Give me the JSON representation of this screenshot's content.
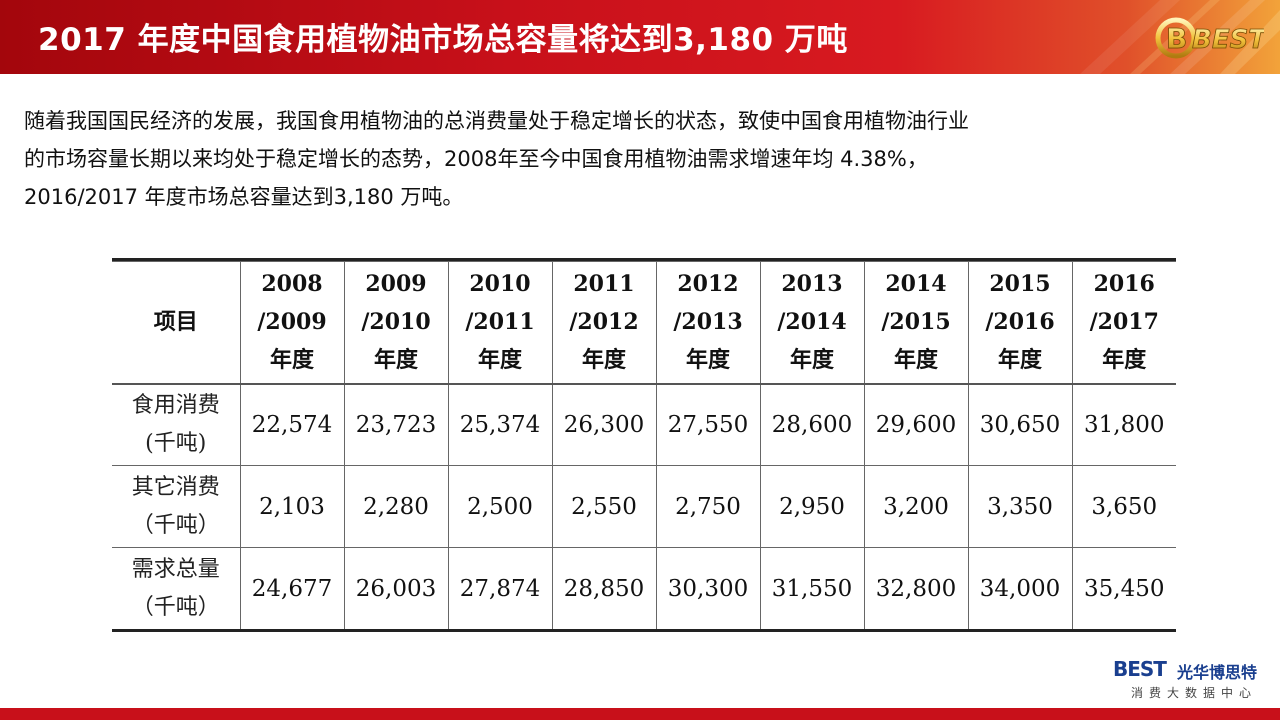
{
  "slide": {
    "title": "2017 年度中国食用植物油市场总容量将达到3,180 万吨",
    "intro_line1": "随着我国国民经济的发展，我国食用植物油的总消费量处于稳定增长的状态，致使中国食用植物油行业",
    "intro_line2": "的市场容量长期以来均处于稳定增长的态势，2008年至今中国食用植物油需求增速年均 4.38%，",
    "intro_line3": "2016/2017 年度市场总容量达到3,180 万吨。"
  },
  "badge": {
    "text": "BEST"
  },
  "table": {
    "corner": "项目",
    "headers": [
      {
        "y1": "2008",
        "y2": "/2009",
        "unit": "年度"
      },
      {
        "y1": "2009",
        "y2": "/2010",
        "unit": "年度"
      },
      {
        "y1": "2010",
        "y2": "/2011",
        "unit": "年度"
      },
      {
        "y1": "2011",
        "y2": "/2012",
        "unit": "年度"
      },
      {
        "y1": "2012",
        "y2": "/2013",
        "unit": "年度"
      },
      {
        "y1": "2013",
        "y2": "/2014",
        "unit": "年度"
      },
      {
        "y1": "2014",
        "y2": "/2015",
        "unit": "年度"
      },
      {
        "y1": "2015",
        "y2": "/2016",
        "unit": "年度"
      },
      {
        "y1": "2016",
        "y2": "/2017",
        "unit": "年度"
      }
    ],
    "rows": [
      {
        "label1": "食用消费",
        "label2": "(千吨)",
        "values": [
          "22,574",
          "23,723",
          "25,374",
          "26,300",
          "27,550",
          "28,600",
          "29,600",
          "30,650",
          "31,800"
        ]
      },
      {
        "label1": "其它消费",
        "label2": "（千吨）",
        "values": [
          "2,103",
          "2,280",
          "2,500",
          "2,550",
          "2,750",
          "2,950",
          "3,200",
          "3,350",
          "3,650"
        ]
      },
      {
        "label1": "需求总量",
        "label2": "（千吨）",
        "values": [
          "24,677",
          "26,003",
          "27,874",
          "28,850",
          "30,300",
          "31,550",
          "32,800",
          "34,000",
          "35,450"
        ]
      }
    ]
  },
  "logo": {
    "mark": "BEST",
    "name": "光华博思特",
    "subtitle": "消费大数据中心"
  },
  "colors": {
    "header_red": "#c8101a",
    "logo_blue": "#1a3f8f"
  }
}
